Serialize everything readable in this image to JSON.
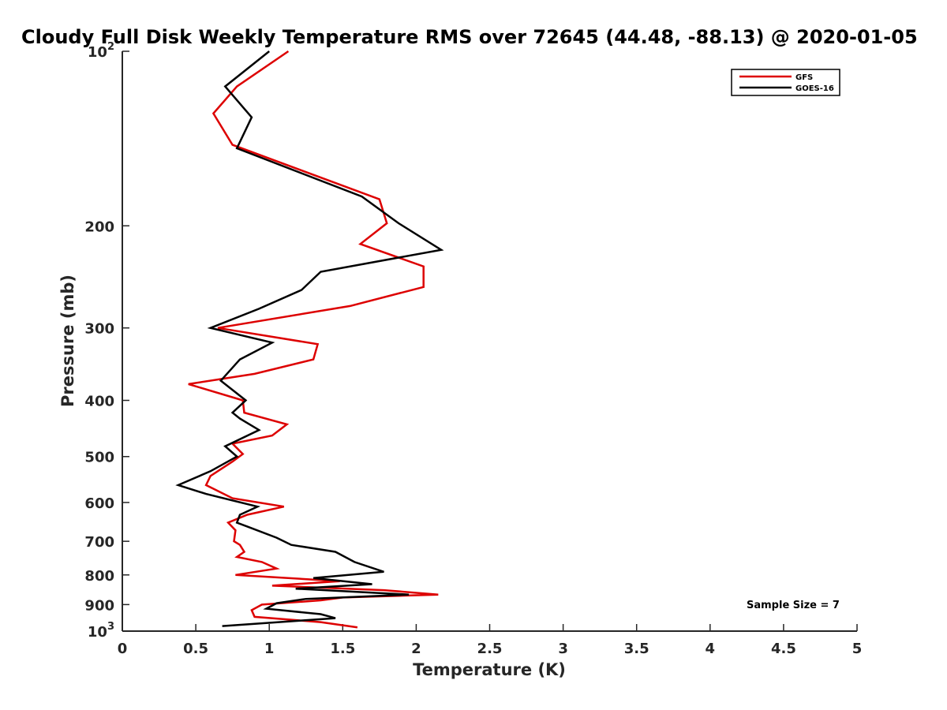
{
  "chart_data": {
    "type": "line",
    "title": "Cloudy Full Disk Weekly Temperature RMS over 72645 (44.48, -88.13) @ 2020-01-05",
    "xlabel": "Temperature (K)",
    "ylabel": "Pressure (mb)",
    "xlim": [
      0,
      5
    ],
    "ylim": [
      100,
      1000
    ],
    "y_scale": "log",
    "y_reversed": true,
    "xticks": [
      "0",
      "0.5",
      "1",
      "1.5",
      "2",
      "2.5",
      "3",
      "3.5",
      "4",
      "4.5",
      "5"
    ],
    "yticks": [
      {
        "value": 100,
        "base": "10",
        "exp": "2"
      },
      {
        "value": 200,
        "label": "200"
      },
      {
        "value": 300,
        "label": "300"
      },
      {
        "value": 400,
        "label": "400"
      },
      {
        "value": 500,
        "label": "500"
      },
      {
        "value": 600,
        "label": "600"
      },
      {
        "value": 700,
        "label": "700"
      },
      {
        "value": 800,
        "label": "800"
      },
      {
        "value": 900,
        "label": "900"
      },
      {
        "value": 1000,
        "base": "10",
        "exp": "3"
      }
    ],
    "grid": false,
    "legend_position": "top-right",
    "annotation": "Sample Size = 7",
    "series": [
      {
        "name": "GFS",
        "color": "#dd0000",
        "points": [
          [
            1.13,
            100
          ],
          [
            0.78,
            115
          ],
          [
            0.62,
            128
          ],
          [
            0.75,
            145
          ],
          [
            1.75,
            180
          ],
          [
            1.8,
            198
          ],
          [
            1.62,
            215
          ],
          [
            2.05,
            235
          ],
          [
            2.05,
            255
          ],
          [
            1.55,
            275
          ],
          [
            0.65,
            300
          ],
          [
            1.33,
            320
          ],
          [
            1.3,
            340
          ],
          [
            0.9,
            360
          ],
          [
            0.45,
            375
          ],
          [
            0.82,
            400
          ],
          [
            0.83,
            420
          ],
          [
            1.12,
            440
          ],
          [
            1.02,
            460
          ],
          [
            0.75,
            475
          ],
          [
            0.82,
            495
          ],
          [
            0.75,
            510
          ],
          [
            0.6,
            540
          ],
          [
            0.57,
            560
          ],
          [
            0.75,
            590
          ],
          [
            1.1,
            610
          ],
          [
            0.85,
            630
          ],
          [
            0.72,
            650
          ],
          [
            0.77,
            670
          ],
          [
            0.76,
            700
          ],
          [
            0.8,
            710
          ],
          [
            0.83,
            730
          ],
          [
            0.78,
            745
          ],
          [
            0.95,
            760
          ],
          [
            1.05,
            780
          ],
          [
            0.77,
            800
          ],
          [
            1.48,
            820
          ],
          [
            1.02,
            835
          ],
          [
            1.78,
            850
          ],
          [
            2.15,
            865
          ],
          [
            1.5,
            875
          ],
          [
            1.35,
            885
          ],
          [
            0.95,
            900
          ],
          [
            0.88,
            920
          ],
          [
            0.9,
            945
          ],
          [
            1.35,
            965
          ],
          [
            1.6,
            985
          ]
        ]
      },
      {
        "name": "GOES-16",
        "color": "#000000",
        "points": [
          [
            1.0,
            100
          ],
          [
            0.7,
            115
          ],
          [
            0.88,
            130
          ],
          [
            0.78,
            147
          ],
          [
            1.63,
            178
          ],
          [
            1.88,
            198
          ],
          [
            2.17,
            220
          ],
          [
            1.35,
            240
          ],
          [
            1.22,
            258
          ],
          [
            0.93,
            278
          ],
          [
            0.6,
            300
          ],
          [
            1.02,
            318
          ],
          [
            0.8,
            340
          ],
          [
            0.67,
            370
          ],
          [
            0.84,
            400
          ],
          [
            0.75,
            420
          ],
          [
            0.8,
            430
          ],
          [
            0.93,
            450
          ],
          [
            0.7,
            480
          ],
          [
            0.78,
            500
          ],
          [
            0.6,
            530
          ],
          [
            0.38,
            560
          ],
          [
            0.57,
            580
          ],
          [
            0.92,
            610
          ],
          [
            0.8,
            630
          ],
          [
            0.78,
            650
          ],
          [
            0.85,
            660
          ],
          [
            1.05,
            690
          ],
          [
            1.15,
            710
          ],
          [
            1.45,
            730
          ],
          [
            1.58,
            760
          ],
          [
            1.78,
            790
          ],
          [
            1.3,
            810
          ],
          [
            1.7,
            830
          ],
          [
            1.18,
            845
          ],
          [
            1.95,
            865
          ],
          [
            1.25,
            880
          ],
          [
            1.05,
            895
          ],
          [
            0.98,
            915
          ],
          [
            1.35,
            935
          ],
          [
            1.45,
            950
          ],
          [
            0.68,
            980
          ]
        ]
      }
    ]
  }
}
